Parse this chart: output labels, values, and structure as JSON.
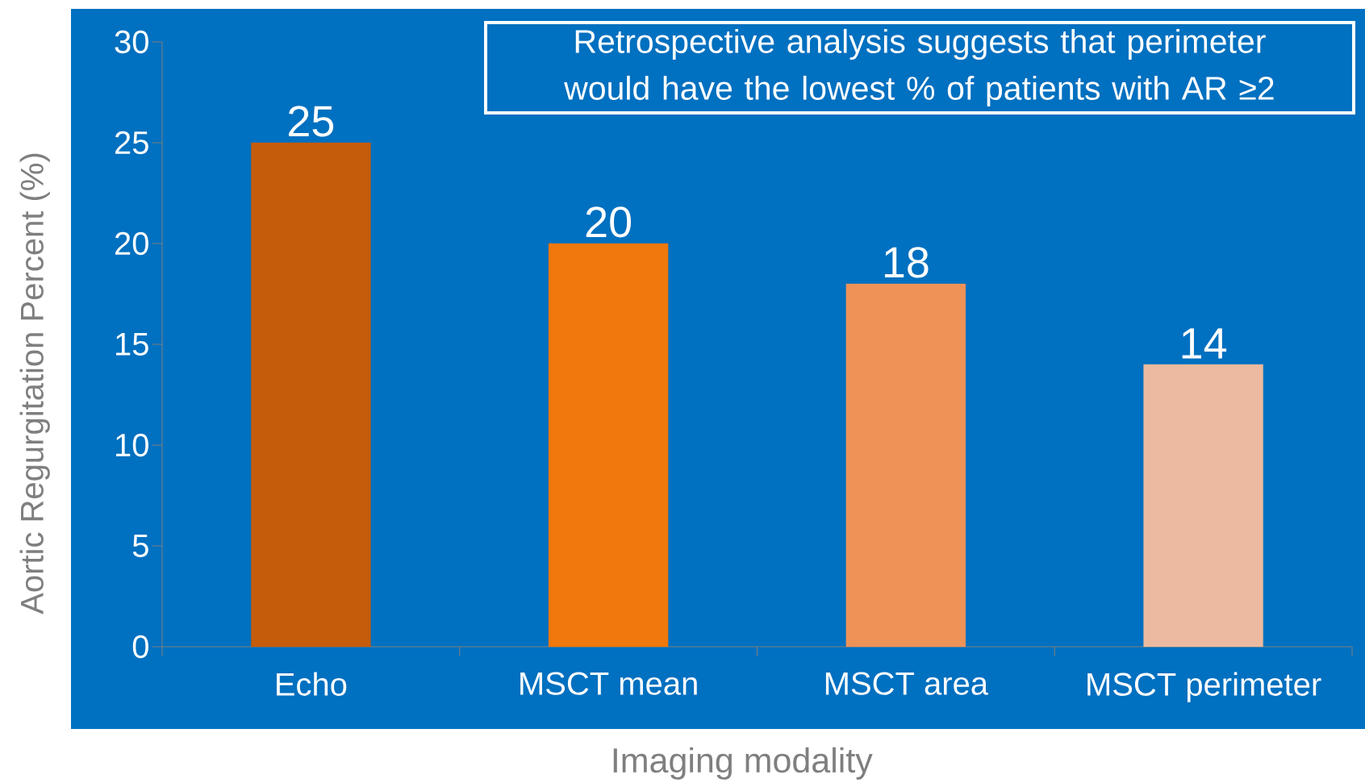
{
  "chart_data": {
    "type": "bar",
    "xlabel": "Imaging modality",
    "ylabel": "Aortic Regurgitation Percent (%)",
    "categories": [
      "Echo",
      "MSCT mean",
      "MSCT area",
      "MSCT perimeter"
    ],
    "values": [
      25,
      20,
      18,
      14
    ],
    "colors": [
      "#c45c0a",
      "#f0780c",
      "#ee9258",
      "#ecbaa0"
    ],
    "ylim": [
      0,
      30
    ],
    "yticks": [
      0,
      5,
      10,
      15,
      20,
      25,
      30
    ],
    "data_labels": true,
    "annotations": [
      "Retrospective analysis suggests that perimeter would have the lowest % of patients with AR ≥2"
    ]
  }
}
